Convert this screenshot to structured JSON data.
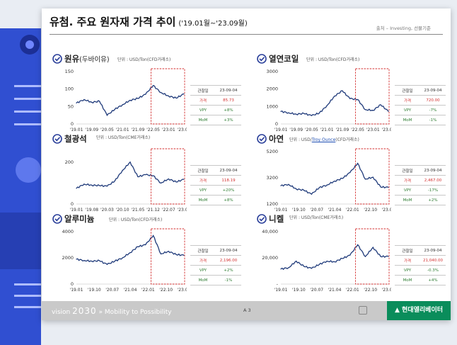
{
  "header": {
    "title": "유첨. 주요 원자재 가격 추이",
    "period": "('19.01월~'23.09월)",
    "source": "출처 – Investing, 선물기준"
  },
  "footer": {
    "brand_prefix": "vision",
    "brand_year": "2030",
    "brand_tagline": "Mobility to Possibility",
    "page": "A 3",
    "logo": "현대엘리베이터"
  },
  "colors": {
    "line": "#1f3a7a",
    "highlight": "#d32f2f",
    "green": "#2e7d32",
    "brand": "#0a8d5b"
  },
  "panels": [
    {
      "name": "원유",
      "name_paren": "(두바이유)",
      "unit": "단위 : USD/Ton(CFD거래소)",
      "info": {
        "label_date": "관찰일",
        "date": "23-09-04",
        "label_price": "가격",
        "price": "85.73",
        "label_vpy": "VPY",
        "vpy": "+8%",
        "label_mom": "MoM",
        "mom": "+3%"
      }
    },
    {
      "name": "열연코일",
      "name_paren": "",
      "unit": "단위 : USD/Ton(CFD거래소)",
      "info": {
        "label_date": "관찰일",
        "date": "23-09-04",
        "label_price": "가격",
        "price": "720.00",
        "label_vpy": "VPY",
        "vpy": "-7%",
        "label_mom": "MoM",
        "mom": "-1%"
      }
    },
    {
      "name": "철광석",
      "name_paren": "",
      "unit": "단위 : USD/Ton(CME거래소)",
      "info": {
        "label_date": "관찰일",
        "date": "23-09-04",
        "label_price": "가격",
        "price": "118.19",
        "label_vpy": "VPY",
        "vpy": "+20%",
        "label_mom": "MoM",
        "mom": "+8%"
      }
    },
    {
      "name": "아연",
      "name_paren": "",
      "unit_pre": "단위 : USD/",
      "unit_link": "Troy Ounce",
      "unit_post": "(CFD거래소)",
      "info": {
        "label_date": "관찰일",
        "date": "23-09-04",
        "label_price": "가격",
        "price": "2,467.00",
        "label_vpy": "VPY",
        "vpy": "-17%",
        "label_mom": "MoM",
        "mom": "+2%"
      }
    },
    {
      "name": "알루미늄",
      "name_paren": "",
      "unit": "단위 : USD/Ton(CFD거래소)",
      "info": {
        "label_date": "관찰일",
        "date": "23-09-04",
        "label_price": "가격",
        "price": "2,196.00",
        "label_vpy": "VPY",
        "vpy": "+2%",
        "label_mom": "MoM",
        "mom": "-1%"
      }
    },
    {
      "name": "니켈",
      "name_paren": "",
      "unit": "단위 : USD/Ton(CME거래소)",
      "info": {
        "label_date": "관찰일",
        "date": "23-09-04",
        "label_price": "가격",
        "price": "21,040.00",
        "label_vpy": "VPY",
        "vpy": "-0.3%",
        "label_mom": "MoM",
        "mom": "+4%"
      }
    }
  ],
  "chart_data": [
    {
      "type": "line",
      "series_name": "원유",
      "x": [
        "'19.01",
        "'19.05",
        "'19.09",
        "'20.01",
        "'20.05",
        "'20.09",
        "'21.01",
        "'21.05",
        "'21.09",
        "'22.01",
        "'22.05",
        "'22.09",
        "'23.01",
        "'23.05",
        "'23.09"
      ],
      "values": [
        60,
        70,
        62,
        65,
        25,
        42,
        55,
        68,
        73,
        85,
        110,
        90,
        80,
        74,
        86
      ],
      "xticks": [
        "'19.01",
        "'19.09",
        "'20.05",
        "'21.01",
        "'21.09",
        "'22.05",
        "'23.01",
        "'23.09"
      ],
      "yticks": [
        0,
        50,
        100,
        150
      ],
      "ylim": [
        0,
        150
      ]
    },
    {
      "type": "line",
      "series_name": "열연코일",
      "x": [
        "'19.01",
        "'19.05",
        "'19.09",
        "'20.01",
        "'20.05",
        "'20.09",
        "'21.01",
        "'21.05",
        "'21.09",
        "'22.01",
        "'22.05",
        "'22.09",
        "'23.01",
        "'23.05",
        "'23.09"
      ],
      "values": [
        720,
        640,
        560,
        600,
        480,
        620,
        1050,
        1600,
        1900,
        1450,
        1400,
        820,
        780,
        1100,
        720
      ],
      "xticks": [
        "'19.01",
        "'19.09",
        "'20.05",
        "'21.01",
        "'21.09",
        "'22.05",
        "'23.01",
        "'23.09"
      ],
      "yticks": [
        0,
        1000,
        2000,
        3000
      ],
      "ylim": [
        0,
        3000
      ]
    },
    {
      "type": "line",
      "series_name": "철광석",
      "x": [
        "'19.01",
        "'19.05",
        "'19.09",
        "'20.01",
        "'20.05",
        "'20.09",
        "'21.01",
        "'21.05",
        "'21.09",
        "'22.01",
        "'22.05",
        "'22.09",
        "'23.01",
        "'23.05",
        "'23.09"
      ],
      "values": [
        75,
        95,
        90,
        88,
        85,
        110,
        160,
        200,
        130,
        140,
        135,
        100,
        120,
        105,
        118
      ],
      "xticks": [
        "'19.01",
        "'19.08",
        "'20.03",
        "'20.10",
        "'21.05",
        "'21.12",
        "'22.07",
        "'23.02"
      ],
      "yticks": [
        0,
        200
      ],
      "ylim": [
        0,
        250
      ]
    },
    {
      "type": "line",
      "series_name": "아연",
      "x": [
        "'19.01",
        "'19.05",
        "'19.09",
        "'20.01",
        "'20.05",
        "'20.09",
        "'21.01",
        "'21.05",
        "'21.09",
        "'22.01",
        "'22.05",
        "'22.09",
        "'23.01",
        "'23.05",
        "'23.09"
      ],
      "values": [
        2600,
        2700,
        2350,
        2250,
        1950,
        2450,
        2650,
        2950,
        3150,
        3600,
        4300,
        3100,
        3250,
        2500,
        2467
      ],
      "xticks": [
        "'19.01",
        "'19.10",
        "'20.07",
        "'21.04",
        "'22.01",
        "'22.10",
        "'23.07"
      ],
      "yticks": [
        1200,
        3200,
        5200
      ],
      "ylim": [
        1200,
        5200
      ]
    },
    {
      "type": "line",
      "series_name": "알루미늄",
      "x": [
        "'19.01",
        "'19.05",
        "'19.09",
        "'20.01",
        "'20.05",
        "'20.09",
        "'21.01",
        "'21.05",
        "'21.09",
        "'22.01",
        "'22.05",
        "'22.09",
        "'23.01",
        "'23.05",
        "'23.09"
      ],
      "values": [
        1900,
        1800,
        1750,
        1780,
        1500,
        1750,
        2000,
        2400,
        2850,
        3000,
        3700,
        2300,
        2500,
        2250,
        2196
      ],
      "xticks": [
        "'19.01",
        "'19.10",
        "'20.07",
        "'21.04",
        "'22.01",
        "'22.10",
        "'23.07"
      ],
      "yticks": [
        0,
        2000,
        4000
      ],
      "ylim": [
        0,
        4000
      ]
    },
    {
      "type": "line",
      "series_name": "니켈",
      "x": [
        "'19.01",
        "'19.05",
        "'19.09",
        "'20.01",
        "'20.05",
        "'20.09",
        "'21.01",
        "'21.05",
        "'21.09",
        "'22.01",
        "'22.05",
        "'22.09",
        "'23.01",
        "'23.05",
        "'23.09"
      ],
      "values": [
        11500,
        12500,
        17500,
        13500,
        12000,
        15000,
        17500,
        17000,
        19500,
        22000,
        30000,
        21000,
        28000,
        21000,
        21040
      ],
      "xticks": [
        "'19.01",
        "'19.10",
        "'20.07",
        "'21.04",
        "'22.01",
        "'22.10",
        "'23.07"
      ],
      "yticks": [
        0,
        20000,
        40000
      ],
      "ytick_labels": [
        "-",
        "20,000",
        "40,000"
      ],
      "ylim": [
        0,
        40000
      ]
    }
  ]
}
